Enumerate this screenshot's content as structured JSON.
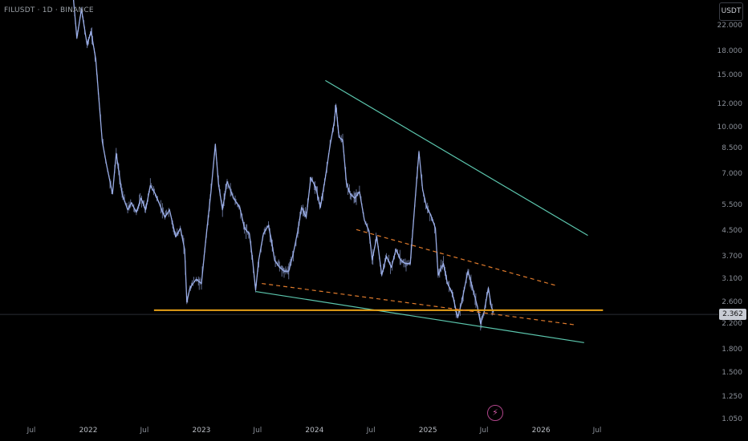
{
  "header": {
    "symbol": "FILUSDT · 1D · BINANCE",
    "currency_button": "USDT"
  },
  "current_price": {
    "label": "2.362",
    "value": 2.362
  },
  "colors": {
    "candle": "#9fb3ee",
    "trendline": "#5cc7ae",
    "support": "#e6a117",
    "dashed": "#e07b2c",
    "axis_text": "#8a8f98",
    "background": "#000000"
  },
  "event_icon": "lightning-bolt-icon",
  "chart_data": {
    "type": "line",
    "title": "FILUSDT · 1D · BINANCE",
    "scale": "log",
    "x_ticks": [
      "Jul",
      "2022",
      "Jul",
      "2023",
      "Jul",
      "2024",
      "Jul",
      "2025",
      "Jul",
      "2026",
      "Jul"
    ],
    "x_ticks_dates": [
      "2021-07-01",
      "2022-01-01",
      "2022-07-01",
      "2023-01-01",
      "2023-07-01",
      "2024-01-01",
      "2024-07-01",
      "2025-01-01",
      "2025-07-01",
      "2026-01-01",
      "2026-07-01"
    ],
    "y_ticks": [
      "22.000",
      "18.000",
      "15.000",
      "12.000",
      "10.000",
      "8.500",
      "7.000",
      "5.500",
      "4.500",
      "3.700",
      "3.100",
      "2.600",
      "2.200",
      "1.800",
      "1.500",
      "1.250",
      "1.050"
    ],
    "y_ticks_values": [
      22,
      18,
      15,
      12,
      10,
      8.5,
      7,
      5.5,
      4.5,
      3.7,
      3.1,
      2.6,
      2.2,
      1.8,
      1.5,
      1.25,
      1.05
    ],
    "ylim": [
      1.05,
      30
    ],
    "series": [
      {
        "values": [
          [
            "2021-11-10",
            30
          ],
          [
            "2021-11-25",
            20
          ],
          [
            "2021-12-10",
            25
          ],
          [
            "2021-12-28",
            19
          ],
          [
            "2022-01-10",
            21
          ],
          [
            "2022-01-25",
            17
          ],
          [
            "2022-02-15",
            9
          ],
          [
            "2022-03-01",
            7.5
          ],
          [
            "2022-03-20",
            6
          ],
          [
            "2022-04-01",
            8.2
          ],
          [
            "2022-04-20",
            6
          ],
          [
            "2022-05-08",
            5.3
          ],
          [
            "2022-05-20",
            5.6
          ],
          [
            "2022-06-05",
            5.2
          ],
          [
            "2022-06-20",
            5.8
          ],
          [
            "2022-07-05",
            5.3
          ],
          [
            "2022-07-20",
            6.4
          ],
          [
            "2022-08-05",
            6.0
          ],
          [
            "2022-08-20",
            5.5
          ],
          [
            "2022-09-05",
            5.0
          ],
          [
            "2022-09-20",
            5.3
          ],
          [
            "2022-10-10",
            4.3
          ],
          [
            "2022-10-25",
            4.6
          ],
          [
            "2022-11-08",
            3.9
          ],
          [
            "2022-11-15",
            2.6
          ],
          [
            "2022-11-25",
            2.9
          ],
          [
            "2022-12-15",
            3.1
          ],
          [
            "2023-01-01",
            3.0
          ],
          [
            "2023-01-15",
            4.2
          ],
          [
            "2023-02-01",
            6.1
          ],
          [
            "2023-02-15",
            8.8
          ],
          [
            "2023-02-25",
            6.5
          ],
          [
            "2023-03-10",
            5.3
          ],
          [
            "2023-03-25",
            6.6
          ],
          [
            "2023-04-15",
            5.8
          ],
          [
            "2023-05-05",
            5.4
          ],
          [
            "2023-05-20",
            4.6
          ],
          [
            "2023-06-05",
            4.4
          ],
          [
            "2023-06-15",
            3.6
          ],
          [
            "2023-06-25",
            2.85
          ],
          [
            "2023-07-05",
            3.6
          ],
          [
            "2023-07-20",
            4.4
          ],
          [
            "2023-08-05",
            4.7
          ],
          [
            "2023-08-15",
            4.2
          ],
          [
            "2023-08-25",
            3.6
          ],
          [
            "2023-09-10",
            3.4
          ],
          [
            "2023-09-25",
            3.3
          ],
          [
            "2023-10-10",
            3.3
          ],
          [
            "2023-10-25",
            3.8
          ],
          [
            "2023-11-08",
            4.5
          ],
          [
            "2023-11-20",
            5.4
          ],
          [
            "2023-12-05",
            5.0
          ],
          [
            "2023-12-20",
            6.8
          ],
          [
            "2024-01-05",
            6.3
          ],
          [
            "2024-01-20",
            5.4
          ],
          [
            "2024-02-05",
            6.8
          ],
          [
            "2024-02-20",
            8.7
          ],
          [
            "2024-03-05",
            10.5
          ],
          [
            "2024-03-10",
            11.9
          ],
          [
            "2024-03-20",
            9.3
          ],
          [
            "2024-04-01",
            9.1
          ],
          [
            "2024-04-13",
            6.5
          ],
          [
            "2024-04-25",
            6.0
          ],
          [
            "2024-05-10",
            5.8
          ],
          [
            "2024-05-25",
            6.1
          ],
          [
            "2024-06-10",
            4.9
          ],
          [
            "2024-06-25",
            4.5
          ],
          [
            "2024-07-05",
            3.6
          ],
          [
            "2024-07-20",
            4.3
          ],
          [
            "2024-08-05",
            3.2
          ],
          [
            "2024-08-20",
            3.7
          ],
          [
            "2024-09-05",
            3.4
          ],
          [
            "2024-09-20",
            3.9
          ],
          [
            "2024-10-05",
            3.6
          ],
          [
            "2024-10-20",
            3.5
          ],
          [
            "2024-11-05",
            3.5
          ],
          [
            "2024-11-20",
            5.6
          ],
          [
            "2024-12-03",
            8.3
          ],
          [
            "2024-12-15",
            6.2
          ],
          [
            "2024-12-28",
            5.4
          ],
          [
            "2025-01-10",
            5.1
          ],
          [
            "2025-01-25",
            4.6
          ],
          [
            "2025-02-03",
            3.2
          ],
          [
            "2025-02-20",
            3.5
          ],
          [
            "2025-03-05",
            3.0
          ],
          [
            "2025-03-20",
            2.8
          ],
          [
            "2025-04-07",
            2.3
          ],
          [
            "2025-04-20",
            2.6
          ],
          [
            "2025-05-10",
            3.3
          ],
          [
            "2025-05-25",
            2.9
          ],
          [
            "2025-06-10",
            2.5
          ],
          [
            "2025-06-20",
            2.2
          ],
          [
            "2025-07-01",
            2.4
          ],
          [
            "2025-07-15",
            2.9
          ],
          [
            "2025-07-25",
            2.5
          ],
          [
            "2025-08-01",
            2.4
          ]
        ]
      }
    ],
    "drawings": [
      {
        "kind": "trendline",
        "style": "solid",
        "color": "#5cc7ae",
        "from": [
          "2024-02-05",
          14.4
        ],
        "to": [
          "2026-06-01",
          4.35
        ]
      },
      {
        "kind": "trendline",
        "style": "solid",
        "color": "#5cc7ae",
        "from": [
          "2023-06-25",
          2.82
        ],
        "to": [
          "2026-05-20",
          1.9
        ]
      },
      {
        "kind": "horizontal",
        "style": "solid",
        "color": "#e6a117",
        "from": [
          "2022-08-01",
          2.44
        ],
        "to": [
          "2026-07-20",
          2.44
        ]
      },
      {
        "kind": "trendline",
        "style": "dashed",
        "color": "#e07b2c",
        "from": [
          "2023-07-15",
          3.0
        ],
        "to": [
          "2026-04-20",
          2.18
        ]
      },
      {
        "kind": "trendline",
        "style": "dashed",
        "color": "#e07b2c",
        "from": [
          "2024-05-15",
          4.55
        ],
        "to": [
          "2026-02-20",
          2.95
        ]
      }
    ]
  }
}
